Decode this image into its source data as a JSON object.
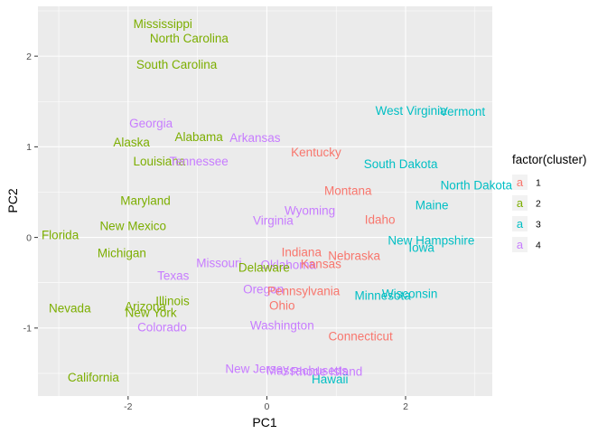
{
  "chart_data": {
    "type": "scatter",
    "title": "",
    "xlabel": "PC1",
    "ylabel": "PC2",
    "xlim": [
      -3.3,
      3.25
    ],
    "ylim": [
      -1.75,
      2.55
    ],
    "x_ticks": [
      -2,
      0,
      2
    ],
    "y_ticks": [
      -1,
      0,
      1,
      2
    ],
    "grid": true,
    "legend": {
      "title": "factor(cluster)",
      "placement": "right",
      "key_glyph": "a",
      "items": [
        {
          "label": "1",
          "color": "#F8766D"
        },
        {
          "label": "2",
          "color": "#7CAE00"
        },
        {
          "label": "3",
          "color": "#00BFC4"
        },
        {
          "label": "4",
          "color": "#C77CFF"
        }
      ]
    },
    "points": [
      {
        "label": "Mississippi",
        "x": -1.5,
        "y": 2.36,
        "cluster": "2"
      },
      {
        "label": "North Carolina",
        "x": -1.12,
        "y": 2.2,
        "cluster": "2"
      },
      {
        "label": "South Carolina",
        "x": -1.3,
        "y": 1.91,
        "cluster": "2"
      },
      {
        "label": "Georgia",
        "x": -1.67,
        "y": 1.26,
        "cluster": "4"
      },
      {
        "label": "Alaska",
        "x": -1.95,
        "y": 1.05,
        "cluster": "2"
      },
      {
        "label": "Alabama",
        "x": -0.98,
        "y": 1.11,
        "cluster": "2"
      },
      {
        "label": "Louisiana",
        "x": -1.55,
        "y": 0.84,
        "cluster": "2"
      },
      {
        "label": "Tennessee",
        "x": -0.98,
        "y": 0.84,
        "cluster": "4"
      },
      {
        "label": "Arkansas",
        "x": -0.17,
        "y": 1.1,
        "cluster": "4"
      },
      {
        "label": "Kentucky",
        "x": 0.71,
        "y": 0.94,
        "cluster": "1"
      },
      {
        "label": "West Virginia",
        "x": 2.08,
        "y": 1.4,
        "cluster": "3"
      },
      {
        "label": "Vermont",
        "x": 2.82,
        "y": 1.39,
        "cluster": "3"
      },
      {
        "label": "South Dakota",
        "x": 1.93,
        "y": 0.81,
        "cluster": "3"
      },
      {
        "label": "Maryland",
        "x": -1.75,
        "y": 0.41,
        "cluster": "2"
      },
      {
        "label": "Montana",
        "x": 1.17,
        "y": 0.52,
        "cluster": "1"
      },
      {
        "label": "North Dakota",
        "x": 3.02,
        "y": 0.58,
        "cluster": "3"
      },
      {
        "label": "Maine",
        "x": 2.38,
        "y": 0.36,
        "cluster": "3"
      },
      {
        "label": "Wyoming",
        "x": 0.62,
        "y": 0.3,
        "cluster": "4"
      },
      {
        "label": "Virginia",
        "x": 0.09,
        "y": 0.19,
        "cluster": "4"
      },
      {
        "label": "Idaho",
        "x": 1.63,
        "y": 0.2,
        "cluster": "1"
      },
      {
        "label": "New Mexico",
        "x": -1.93,
        "y": 0.13,
        "cluster": "2"
      },
      {
        "label": "Florida",
        "x": -2.98,
        "y": 0.03,
        "cluster": "2"
      },
      {
        "label": "New Hampshire",
        "x": 2.37,
        "y": -0.03,
        "cluster": "3"
      },
      {
        "label": "Iowa",
        "x": 2.23,
        "y": -0.11,
        "cluster": "3"
      },
      {
        "label": "Michigan",
        "x": -2.09,
        "y": -0.17,
        "cluster": "2"
      },
      {
        "label": "Indiana",
        "x": 0.5,
        "y": -0.16,
        "cluster": "1"
      },
      {
        "label": "Nebraska",
        "x": 1.26,
        "y": -0.2,
        "cluster": "1"
      },
      {
        "label": "Missouri",
        "x": -0.69,
        "y": -0.28,
        "cluster": "4"
      },
      {
        "label": "Oklahoma",
        "x": 0.31,
        "y": -0.3,
        "cluster": "4"
      },
      {
        "label": "Kansas",
        "x": 0.78,
        "y": -0.29,
        "cluster": "1"
      },
      {
        "label": "Delaware",
        "x": -0.04,
        "y": -0.33,
        "cluster": "2"
      },
      {
        "label": "Texas",
        "x": -1.35,
        "y": -0.42,
        "cluster": "4"
      },
      {
        "label": "Oregon",
        "x": -0.05,
        "y": -0.57,
        "cluster": "4"
      },
      {
        "label": "Pennsylvania",
        "x": 0.53,
        "y": -0.59,
        "cluster": "1"
      },
      {
        "label": "Wisconsin",
        "x": 2.06,
        "y": -0.62,
        "cluster": "3"
      },
      {
        "label": "Minnesota",
        "x": 1.67,
        "y": -0.64,
        "cluster": "3"
      },
      {
        "label": "Illinois",
        "x": -1.36,
        "y": -0.7,
        "cluster": "2"
      },
      {
        "label": "Arizona",
        "x": -1.75,
        "y": -0.76,
        "cluster": "2"
      },
      {
        "label": "Ohio",
        "x": 0.22,
        "y": -0.75,
        "cluster": "1"
      },
      {
        "label": "Nevada",
        "x": -2.84,
        "y": -0.78,
        "cluster": "2"
      },
      {
        "label": "New York",
        "x": -1.67,
        "y": -0.83,
        "cluster": "2"
      },
      {
        "label": "Washington",
        "x": 0.22,
        "y": -0.97,
        "cluster": "4"
      },
      {
        "label": "Colorado",
        "x": -1.51,
        "y": -0.99,
        "cluster": "4"
      },
      {
        "label": "Connecticut",
        "x": 1.35,
        "y": -1.09,
        "cluster": "1"
      },
      {
        "label": "New Jersey",
        "x": -0.14,
        "y": -1.45,
        "cluster": "4"
      },
      {
        "label": "Massachusetts",
        "x": 0.58,
        "y": -1.47,
        "cluster": "4"
      },
      {
        "label": "Rhode Island",
        "x": 0.86,
        "y": -1.48,
        "cluster": "4"
      },
      {
        "label": "Hawaii",
        "x": 0.91,
        "y": -1.56,
        "cluster": "3"
      },
      {
        "label": "California",
        "x": -2.5,
        "y": -1.54,
        "cluster": "2"
      }
    ]
  }
}
